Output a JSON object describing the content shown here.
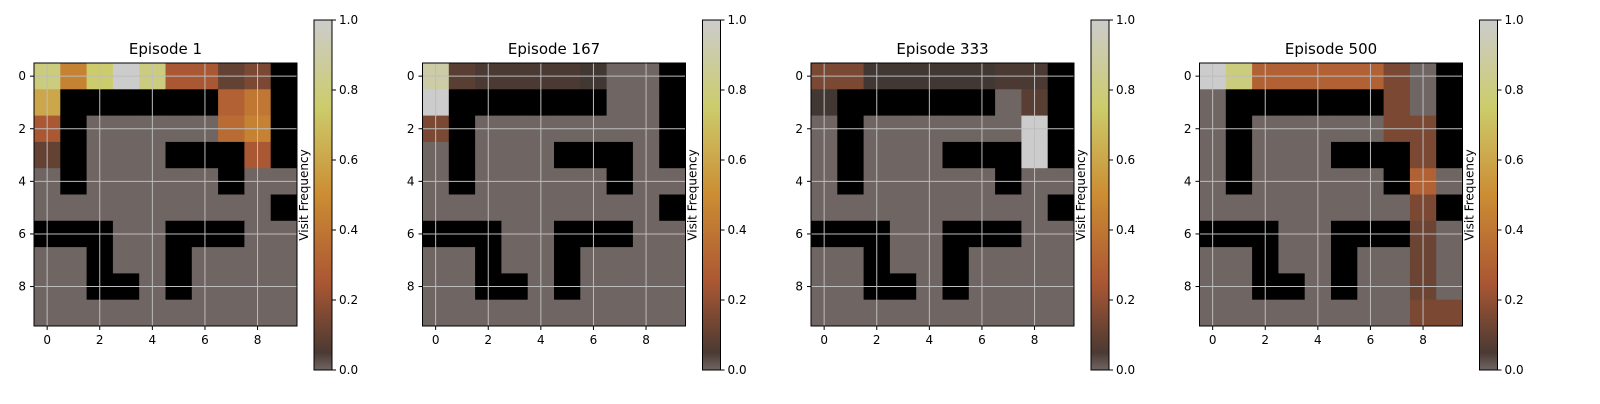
{
  "chart_data": [
    {
      "type": "heatmap",
      "title": "Episode 1",
      "colorbar": {
        "label": "Visit Frequency",
        "range": [
          0.0,
          1.0
        ],
        "ticks": [
          "0.0",
          "0.2",
          "0.4",
          "0.6",
          "0.8",
          "1.0"
        ]
      },
      "xticks": [
        "0",
        "2",
        "4",
        "6",
        "8"
      ],
      "yticks": [
        "0",
        "2",
        "4",
        "6",
        "8"
      ],
      "grid": true,
      "visits": [
        [
          0.8,
          0.45,
          0.75,
          1.0,
          0.8,
          0.25,
          0.25,
          0.1,
          0.15,
          0.0
        ],
        [
          0.6,
          0.0,
          0.0,
          0.0,
          0.0,
          0.0,
          0.0,
          0.3,
          0.4,
          0.0
        ],
        [
          0.25,
          0.0,
          0.0,
          0.0,
          0.0,
          0.0,
          0.0,
          0.35,
          0.45,
          0.0
        ],
        [
          0.1,
          0.0,
          0.0,
          0.0,
          0.0,
          0.0,
          0.0,
          0.0,
          0.25,
          0.0
        ],
        [
          0.0,
          0.0,
          0.0,
          0.0,
          0.0,
          0.0,
          0.0,
          0.0,
          0.0,
          0.0
        ],
        [
          0.0,
          0.0,
          0.0,
          0.0,
          0.0,
          0.0,
          0.0,
          0.0,
          0.0,
          0.0
        ],
        [
          0.0,
          0.0,
          0.0,
          0.0,
          0.0,
          0.0,
          0.0,
          0.0,
          0.0,
          0.0
        ],
        [
          0.0,
          0.0,
          0.0,
          0.0,
          0.0,
          0.0,
          0.0,
          0.0,
          0.0,
          0.0
        ],
        [
          0.0,
          0.0,
          0.0,
          0.0,
          0.0,
          0.0,
          0.0,
          0.0,
          0.0,
          0.0
        ],
        [
          0.0,
          0.0,
          0.0,
          0.0,
          0.0,
          0.0,
          0.0,
          0.0,
          0.0,
          0.0
        ]
      ]
    },
    {
      "type": "heatmap",
      "title": "Episode 167",
      "colorbar": {
        "label": "Visit Frequency",
        "range": [
          0.0,
          1.0
        ],
        "ticks": [
          "0.0",
          "0.2",
          "0.4",
          "0.6",
          "0.8",
          "1.0"
        ]
      },
      "xticks": [
        "0",
        "2",
        "4",
        "6",
        "8"
      ],
      "yticks": [
        "0",
        "2",
        "4",
        "6",
        "8"
      ],
      "grid": true,
      "visits": [
        [
          0.9,
          0.08,
          0.05,
          0.05,
          0.05,
          0.05,
          0.03,
          0.0,
          0.0,
          0.0
        ],
        [
          1.0,
          0.0,
          0.0,
          0.0,
          0.0,
          0.0,
          0.0,
          0.0,
          0.0,
          0.0
        ],
        [
          0.15,
          0.0,
          0.0,
          0.0,
          0.0,
          0.0,
          0.0,
          0.0,
          0.0,
          0.0
        ],
        [
          0.0,
          0.0,
          0.0,
          0.0,
          0.0,
          0.0,
          0.0,
          0.0,
          0.0,
          0.0
        ],
        [
          0.0,
          0.0,
          0.0,
          0.0,
          0.0,
          0.0,
          0.0,
          0.0,
          0.0,
          0.0
        ],
        [
          0.0,
          0.0,
          0.0,
          0.0,
          0.0,
          0.0,
          0.0,
          0.0,
          0.0,
          0.0
        ],
        [
          0.0,
          0.0,
          0.0,
          0.0,
          0.0,
          0.0,
          0.0,
          0.0,
          0.0,
          0.0
        ],
        [
          0.0,
          0.0,
          0.0,
          0.0,
          0.0,
          0.0,
          0.0,
          0.0,
          0.0,
          0.0
        ],
        [
          0.0,
          0.0,
          0.0,
          0.0,
          0.0,
          0.0,
          0.0,
          0.0,
          0.0,
          0.0
        ],
        [
          0.0,
          0.0,
          0.0,
          0.0,
          0.0,
          0.0,
          0.0,
          0.0,
          0.0,
          0.0
        ]
      ]
    },
    {
      "type": "heatmap",
      "title": "Episode 333",
      "colorbar": {
        "label": "Visit Frequency",
        "range": [
          0.0,
          1.0
        ],
        "ticks": [
          "0.0",
          "0.2",
          "0.4",
          "0.6",
          "0.8",
          "1.0"
        ]
      },
      "xticks": [
        "0",
        "2",
        "4",
        "6",
        "8"
      ],
      "yticks": [
        "0",
        "2",
        "4",
        "6",
        "8"
      ],
      "grid": true,
      "visits": [
        [
          0.15,
          0.15,
          0.03,
          0.03,
          0.03,
          0.03,
          0.03,
          0.05,
          0.05,
          0.0
        ],
        [
          0.03,
          0.0,
          0.0,
          0.0,
          0.0,
          0.0,
          0.0,
          0.0,
          0.08,
          0.0
        ],
        [
          0.0,
          0.0,
          0.0,
          0.0,
          0.0,
          0.0,
          0.0,
          0.0,
          1.0,
          0.0
        ],
        [
          0.0,
          0.0,
          0.0,
          0.0,
          0.0,
          0.0,
          0.0,
          0.0,
          1.0,
          0.0
        ],
        [
          0.0,
          0.0,
          0.0,
          0.0,
          0.0,
          0.0,
          0.0,
          0.0,
          0.0,
          0.0
        ],
        [
          0.0,
          0.0,
          0.0,
          0.0,
          0.0,
          0.0,
          0.0,
          0.0,
          0.0,
          0.0
        ],
        [
          0.0,
          0.0,
          0.0,
          0.0,
          0.0,
          0.0,
          0.0,
          0.0,
          0.0,
          0.0
        ],
        [
          0.0,
          0.0,
          0.0,
          0.0,
          0.0,
          0.0,
          0.0,
          0.0,
          0.0,
          0.0
        ],
        [
          0.0,
          0.0,
          0.0,
          0.0,
          0.0,
          0.0,
          0.0,
          0.0,
          0.0,
          0.0
        ],
        [
          0.0,
          0.0,
          0.0,
          0.0,
          0.0,
          0.0,
          0.0,
          0.0,
          0.0,
          0.0
        ]
      ]
    },
    {
      "type": "heatmap",
      "title": "Episode 500",
      "colorbar": {
        "label": "Visit Frequency",
        "range": [
          0.0,
          1.0
        ],
        "ticks": [
          "0.0",
          "0.2",
          "0.4",
          "0.6",
          "0.8",
          "1.0"
        ]
      },
      "xticks": [
        "0",
        "2",
        "4",
        "6",
        "8"
      ],
      "yticks": [
        "0",
        "2",
        "4",
        "6",
        "8"
      ],
      "grid": true,
      "visits": [
        [
          1.0,
          0.8,
          0.3,
          0.3,
          0.3,
          0.3,
          0.3,
          0.15,
          0.0,
          0.0
        ],
        [
          0.0,
          0.0,
          0.0,
          0.0,
          0.0,
          0.0,
          0.0,
          0.15,
          0.0,
          0.0
        ],
        [
          0.0,
          0.0,
          0.0,
          0.0,
          0.0,
          0.0,
          0.0,
          0.15,
          0.15,
          0.0
        ],
        [
          0.0,
          0.0,
          0.0,
          0.0,
          0.0,
          0.0,
          0.0,
          0.0,
          0.15,
          0.0
        ],
        [
          0.0,
          0.0,
          0.0,
          0.0,
          0.0,
          0.0,
          0.0,
          0.0,
          0.3,
          0.0
        ],
        [
          0.0,
          0.0,
          0.0,
          0.0,
          0.0,
          0.0,
          0.0,
          0.0,
          0.15,
          0.0
        ],
        [
          0.0,
          0.0,
          0.0,
          0.0,
          0.0,
          0.0,
          0.0,
          0.0,
          0.12,
          0.0
        ],
        [
          0.0,
          0.0,
          0.0,
          0.0,
          0.0,
          0.0,
          0.0,
          0.0,
          0.12,
          0.0
        ],
        [
          0.0,
          0.0,
          0.0,
          0.0,
          0.0,
          0.0,
          0.0,
          0.0,
          0.12,
          0.0
        ],
        [
          0.0,
          0.0,
          0.0,
          0.0,
          0.0,
          0.0,
          0.0,
          0.0,
          0.15,
          0.15
        ]
      ]
    }
  ],
  "maze": {
    "wall_color": "#000000",
    "walls": [
      [
        0,
        9
      ],
      [
        1,
        1
      ],
      [
        1,
        2
      ],
      [
        1,
        3
      ],
      [
        1,
        4
      ],
      [
        1,
        5
      ],
      [
        1,
        6
      ],
      [
        1,
        9
      ],
      [
        2,
        1
      ],
      [
        2,
        9
      ],
      [
        3,
        1
      ],
      [
        3,
        5
      ],
      [
        3,
        6
      ],
      [
        3,
        7
      ],
      [
        3,
        9
      ],
      [
        4,
        1
      ],
      [
        4,
        7
      ],
      [
        5,
        9
      ],
      [
        6,
        0
      ],
      [
        6,
        1
      ],
      [
        6,
        2
      ],
      [
        6,
        5
      ],
      [
        6,
        6
      ],
      [
        6,
        7
      ],
      [
        7,
        2
      ],
      [
        7,
        5
      ],
      [
        8,
        2
      ],
      [
        8,
        3
      ],
      [
        8,
        5
      ]
    ]
  },
  "colors": {
    "zero": "#6f6563",
    "cmap_stops": [
      "#000000",
      "#c63b00",
      "#ff9500",
      "#ffff5e",
      "#ffffff"
    ],
    "grid": "#bdbdbd"
  }
}
